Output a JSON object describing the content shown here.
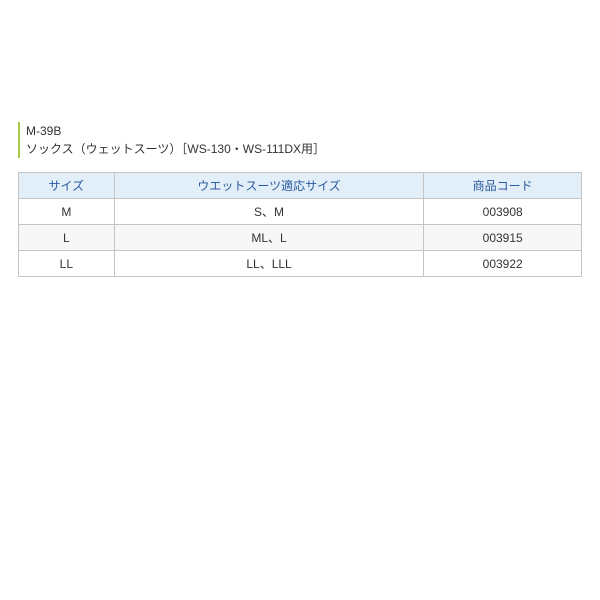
{
  "title": {
    "model": "M-39B",
    "name": "ソックス（ウェットスーツ）［WS-130・WS-111DX用］"
  },
  "table": {
    "columns": [
      "サイズ",
      "ウエットスーツ適応サイズ",
      "商品コード"
    ],
    "rows": [
      [
        "M",
        "S、M",
        "003908"
      ],
      [
        "L",
        "ML、L",
        "003915"
      ],
      [
        "LL",
        "LL、LLL",
        "003922"
      ]
    ],
    "header_bg": "#e2eef8",
    "header_color": "#2a5aa0",
    "border_color": "#c4c4c4",
    "alt_row_bg": "#f7f7f7",
    "accent_bar": "#a8c848",
    "text_color": "#333333",
    "fontsize": 12
  }
}
